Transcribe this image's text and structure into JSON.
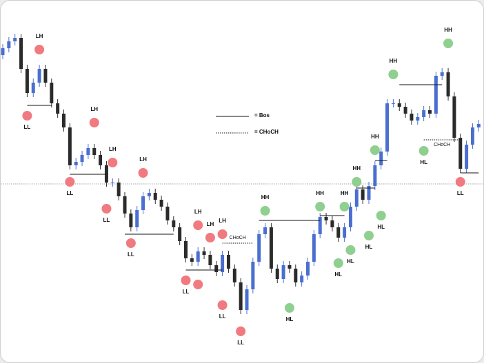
{
  "chart_data": {
    "type": "candlestick",
    "ylim": [
      0,
      527
    ],
    "up_color": "#4a6fd0",
    "down_color": "#2b2b2b",
    "open": [
      447,
      457,
      467,
      472,
      427,
      392,
      407,
      427,
      407,
      377,
      362,
      342,
      287,
      292,
      302,
      312,
      302,
      287,
      262,
      262,
      242,
      217,
      197,
      222,
      242,
      247,
      237,
      227,
      207,
      197,
      177,
      152,
      147,
      162,
      157,
      142,
      132,
      157,
      137,
      117,
      77,
      107,
      147,
      187,
      197,
      137,
      122,
      142,
      137,
      117,
      127,
      147,
      187,
      212,
      207,
      197,
      182,
      197,
      227,
      252,
      237,
      257,
      287,
      307,
      377,
      377,
      372,
      362,
      352,
      357,
      367,
      362,
      417,
      422,
      387,
      327,
      282,
      317,
      342
    ],
    "high": [
      463,
      473,
      478,
      478,
      433,
      413,
      433,
      433,
      413,
      383,
      368,
      348,
      298,
      308,
      318,
      318,
      308,
      293,
      268,
      268,
      248,
      223,
      228,
      248,
      253,
      253,
      243,
      233,
      213,
      203,
      183,
      158,
      168,
      168,
      163,
      148,
      163,
      163,
      143,
      123,
      113,
      153,
      193,
      203,
      203,
      143,
      148,
      148,
      143,
      133,
      153,
      193,
      218,
      218,
      213,
      203,
      203,
      233,
      258,
      258,
      263,
      293,
      313,
      383,
      383,
      383,
      378,
      368,
      363,
      373,
      373,
      423,
      428,
      428,
      393,
      333,
      323,
      348,
      353
    ],
    "low": [
      441,
      451,
      461,
      421,
      386,
      386,
      401,
      401,
      371,
      356,
      336,
      281,
      281,
      286,
      296,
      296,
      281,
      256,
      256,
      236,
      211,
      191,
      191,
      216,
      236,
      231,
      221,
      201,
      191,
      171,
      146,
      141,
      141,
      151,
      136,
      126,
      126,
      131,
      111,
      71,
      71,
      101,
      141,
      181,
      131,
      116,
      116,
      131,
      111,
      111,
      121,
      141,
      181,
      201,
      191,
      176,
      176,
      191,
      221,
      231,
      231,
      251,
      281,
      301,
      371,
      366,
      356,
      346,
      346,
      351,
      356,
      356,
      411,
      381,
      321,
      276,
      276,
      311,
      336
    ],
    "close": [
      457,
      467,
      472,
      427,
      392,
      407,
      427,
      407,
      377,
      362,
      342,
      287,
      292,
      302,
      312,
      302,
      287,
      262,
      262,
      242,
      217,
      197,
      222,
      242,
      247,
      237,
      227,
      207,
      197,
      177,
      152,
      147,
      162,
      157,
      142,
      132,
      157,
      137,
      117,
      77,
      107,
      147,
      187,
      197,
      137,
      122,
      142,
      137,
      117,
      127,
      147,
      187,
      212,
      207,
      197,
      182,
      197,
      227,
      252,
      237,
      257,
      287,
      307,
      377,
      377,
      372,
      362,
      352,
      357,
      367,
      362,
      417,
      422,
      387,
      327,
      282,
      317,
      342,
      347
    ],
    "hline": 260,
    "pivots": [
      {
        "label": "LH",
        "index": 6,
        "value": 455,
        "color": "#f07a80"
      },
      {
        "label": "LL",
        "index": 4,
        "value": 359,
        "color": "#f07a80"
      },
      {
        "label": "LH",
        "index": 15,
        "value": 349,
        "color": "#f07a80"
      },
      {
        "label": "LL",
        "index": 11,
        "value": 263,
        "color": "#f07a80"
      },
      {
        "label": "LH",
        "index": 18,
        "value": 291,
        "color": "#f07a80"
      },
      {
        "label": "LL",
        "index": 17,
        "value": 224,
        "color": "#f07a80"
      },
      {
        "label": "LH",
        "index": 23,
        "value": 276,
        "color": "#f07a80"
      },
      {
        "label": "LL",
        "index": 21,
        "value": 174,
        "color": "#f07a80"
      },
      {
        "label": "LH",
        "index": 32,
        "value": 200,
        "color": "#f07a80"
      },
      {
        "label": "LH",
        "index": 34,
        "value": 182,
        "color": "#f07a80"
      },
      {
        "label": "LH",
        "index": 36,
        "value": 187,
        "color": "#f07a80"
      },
      {
        "label": "LL",
        "index": 30,
        "value": 120,
        "color": "#f07a80"
      },
      {
        "label": null,
        "index": 32,
        "value": 114,
        "color": "#f07a80"
      },
      {
        "label": "LL",
        "index": 36,
        "value": 84,
        "color": "#f07a80"
      },
      {
        "label": "LL",
        "index": 39,
        "value": 46,
        "color": "#f07a80"
      },
      {
        "label": "HH",
        "index": 43,
        "value": 221,
        "color": "#8fcf8f"
      },
      {
        "label": "HL",
        "index": 47,
        "value": 80,
        "color": "#8fcf8f"
      },
      {
        "label": "HH",
        "index": 52,
        "value": 227,
        "color": "#8fcf8f"
      },
      {
        "label": "HH",
        "index": 56,
        "value": 227,
        "color": "#8fcf8f"
      },
      {
        "label": "HH",
        "index": 58,
        "value": 263,
        "color": "#8fcf8f"
      },
      {
        "label": "HH",
        "index": 61,
        "value": 309,
        "color": "#8fcf8f"
      },
      {
        "label": "HH",
        "index": 64,
        "value": 419,
        "color": "#8fcf8f"
      },
      {
        "label": "HH",
        "index": 73,
        "value": 464,
        "color": "#8fcf8f"
      },
      {
        "label": "HL",
        "index": 55,
        "value": 145,
        "color": "#8fcf8f"
      },
      {
        "label": "HL",
        "index": 57,
        "value": 164,
        "color": "#8fcf8f"
      },
      {
        "label": "HL",
        "index": 60,
        "value": 185,
        "color": "#8fcf8f"
      },
      {
        "label": "HL",
        "index": 62,
        "value": 214,
        "color": "#8fcf8f"
      },
      {
        "label": "HL",
        "index": 69,
        "value": 308,
        "color": "#8fcf8f"
      },
      {
        "label": "LL",
        "index": 75,
        "value": 263,
        "color": "#f07a80"
      }
    ],
    "structure": [
      {
        "from": 4,
        "to": 8,
        "value": 374,
        "style": "solid"
      },
      {
        "from": 11,
        "to": 17,
        "value": 274,
        "style": "solid"
      },
      {
        "from": 20,
        "to": 28,
        "value": 187,
        "style": "solid"
      },
      {
        "from": 30,
        "to": 36,
        "value": 135,
        "style": "solid"
      },
      {
        "from": 42,
        "to": 52,
        "value": 207,
        "style": "solid"
      },
      {
        "from": 52,
        "to": 56,
        "value": 214,
        "style": "solid"
      },
      {
        "from": 58,
        "to": 61,
        "value": 254,
        "style": "solid"
      },
      {
        "from": 61,
        "to": 63,
        "value": 294,
        "style": "solid"
      },
      {
        "from": 65,
        "to": 72,
        "value": 404,
        "style": "solid"
      },
      {
        "from": 75,
        "to": 78,
        "value": 276,
        "style": "solid"
      },
      {
        "from": 36,
        "to": 41,
        "value": 174,
        "style": "dotted",
        "label": "CHoCH"
      },
      {
        "from": 69,
        "to": 75,
        "value": 324,
        "style": "dotted",
        "label": "CHoCH"
      }
    ],
    "legend": [
      {
        "label": "= Bos",
        "style": "solid"
      },
      {
        "label": "= CHoCH",
        "style": "dotted"
      }
    ]
  }
}
